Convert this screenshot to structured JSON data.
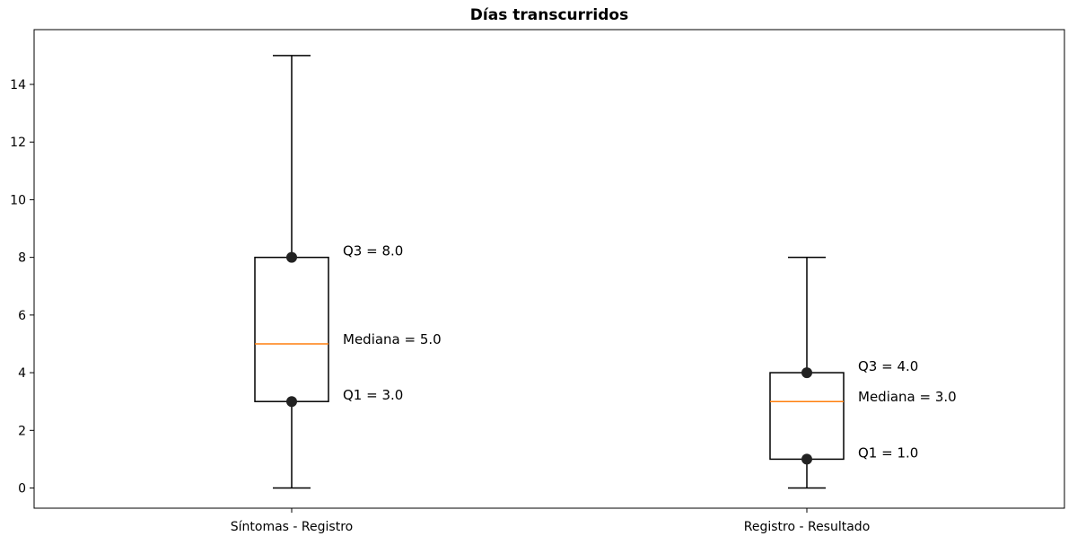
{
  "chart_data": {
    "type": "box",
    "title": "Días transcurridos",
    "xlabel": "",
    "ylabel": "",
    "ylim": [
      -0.7,
      15.9
    ],
    "yticks": [
      0,
      2,
      4,
      6,
      8,
      10,
      12,
      14
    ],
    "ytick_labels": [
      "0",
      "2",
      "4",
      "6",
      "8",
      "10",
      "12",
      "14"
    ],
    "grid": false,
    "categories": [
      "Síntomas - Registro",
      "Registro - Resultado"
    ],
    "boxes": [
      {
        "category": "Síntomas - Registro",
        "whisker_low": 0,
        "q1": 3.0,
        "median": 5.0,
        "q3": 8.0,
        "whisker_high": 15,
        "annotations": {
          "q3": "Q3 = 8.0",
          "median": "Mediana = 5.0",
          "q1": "Q1 = 3.0"
        }
      },
      {
        "category": "Registro - Resultado",
        "whisker_low": 0,
        "q1": 1.0,
        "median": 3.0,
        "q3": 4.0,
        "whisker_high": 8,
        "annotations": {
          "q3": "Q3 = 4.0",
          "median": "Mediana = 3.0",
          "q1": "Q1 = 1.0"
        }
      }
    ],
    "colors": {
      "box": "#000000",
      "median": "#ff7f0e",
      "marker": "#222222"
    }
  }
}
